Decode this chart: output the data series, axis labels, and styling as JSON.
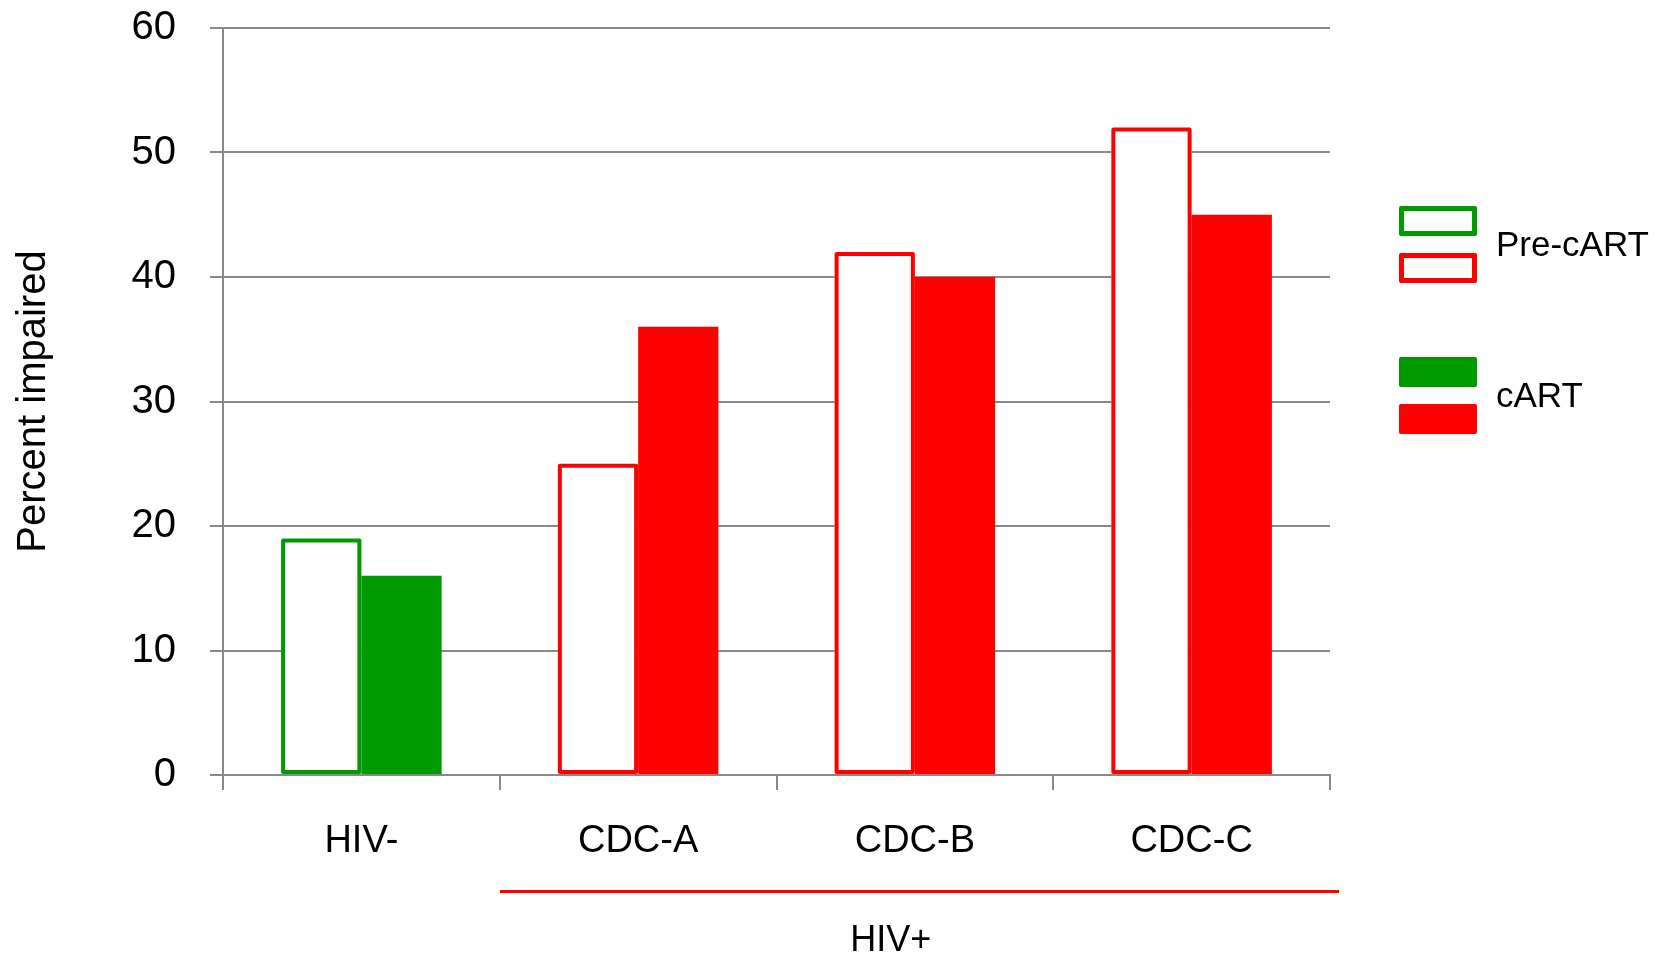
{
  "chart_data": {
    "type": "bar",
    "ylabel": "Percent impaired",
    "categories": [
      "HIV-",
      "CDC-A",
      "CDC-B",
      "CDC-C"
    ],
    "series": [
      {
        "name": "Pre-cART",
        "colors": [
          "#009900",
          "#ff0000",
          "#ff0000",
          "#ff0000"
        ],
        "values": [
          19,
          25,
          42,
          52
        ]
      },
      {
        "name": "cART",
        "colors": [
          "#009900",
          "#ff0000",
          "#ff0000",
          "#ff0000"
        ],
        "values": [
          16,
          36,
          40,
          45
        ]
      }
    ],
    "ylim": [
      0,
      60
    ],
    "yticks": [
      0,
      10,
      20,
      30,
      40,
      50,
      60
    ],
    "grid": "y",
    "legend": "right",
    "annotations": [
      "HIV+"
    ]
  }
}
